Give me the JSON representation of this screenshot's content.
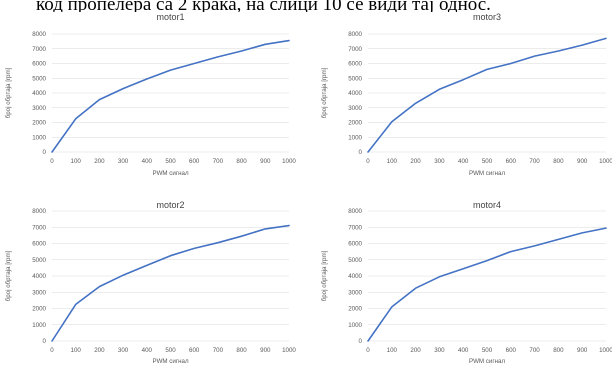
{
  "page": {
    "header_text": "код пропелера са 2 крака, на слици 10 се види тај однос."
  },
  "chart_data": [
    {
      "type": "line",
      "title": "motor1",
      "xlabel": "PWM сигнал",
      "ylabel": "број обртаја [rpm]",
      "x": [
        0,
        100,
        200,
        300,
        400,
        500,
        600,
        700,
        800,
        900,
        1000
      ],
      "xlim": [
        0,
        1000
      ],
      "ylim": [
        0,
        8000
      ],
      "grid": true,
      "color": "#4472c4",
      "series": [
        {
          "values": [
            0,
            2250,
            3550,
            4300,
            4950,
            5550,
            6000,
            6450,
            6850,
            7300,
            7550
          ]
        }
      ]
    },
    {
      "type": "line",
      "title": "motor3",
      "xlabel": "PWM сигнал",
      "ylabel": "број обртаја [rpm]",
      "x": [
        0,
        100,
        200,
        300,
        400,
        500,
        600,
        700,
        800,
        900,
        1000
      ],
      "xlim": [
        0,
        1000
      ],
      "ylim": [
        0,
        8000
      ],
      "grid": true,
      "color": "#4472c4",
      "series": [
        {
          "values": [
            0,
            2050,
            3300,
            4250,
            4900,
            5600,
            6000,
            6500,
            6850,
            7250,
            7700
          ]
        }
      ]
    },
    {
      "type": "line",
      "title": "motor2",
      "xlabel": "PWM сигнал",
      "ylabel": "број обртаја [rpm]",
      "x": [
        0,
        100,
        200,
        300,
        400,
        500,
        600,
        700,
        800,
        900,
        1000
      ],
      "xlim": [
        0,
        1000
      ],
      "ylim": [
        0,
        8000
      ],
      "grid": true,
      "color": "#4472c4",
      "series": [
        {
          "values": [
            0,
            2250,
            3350,
            4050,
            4650,
            5250,
            5700,
            6050,
            6450,
            6900,
            7100
          ]
        }
      ]
    },
    {
      "type": "line",
      "title": "motor4",
      "xlabel": "PWM сигнал",
      "ylabel": "број обртаја [rpm]",
      "x": [
        0,
        100,
        200,
        300,
        400,
        500,
        600,
        700,
        800,
        900,
        1000
      ],
      "xlim": [
        0,
        1000
      ],
      "ylim": [
        0,
        8000
      ],
      "grid": true,
      "color": "#4472c4",
      "series": [
        {
          "values": [
            0,
            2100,
            3250,
            3950,
            4450,
            4950,
            5500,
            5850,
            6250,
            6650,
            6950
          ]
        }
      ]
    }
  ]
}
